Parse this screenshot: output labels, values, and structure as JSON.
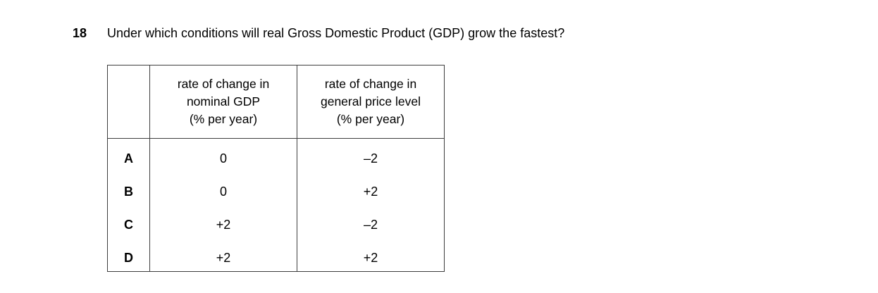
{
  "question": {
    "number": "18",
    "text": "Under which conditions will real Gross Domestic Product (GDP) grow the fastest?"
  },
  "table": {
    "col_headers": {
      "row_label": "",
      "nominal_gdp": "rate of change in\nnominal GDP\n(% per year)",
      "price_level": "rate of change in\ngeneral price level\n(% per year)"
    },
    "rows": [
      {
        "label": "A",
        "nominal_gdp": "0",
        "price_level": "–2"
      },
      {
        "label": "B",
        "nominal_gdp": "0",
        "price_level": "+2"
      },
      {
        "label": "C",
        "nominal_gdp": "+2",
        "price_level": "–2"
      },
      {
        "label": "D",
        "nominal_gdp": "+2",
        "price_level": "+2"
      }
    ]
  },
  "colors": {
    "background": "#ffffff",
    "text": "#000000",
    "table_border": "#3d3d3d"
  }
}
